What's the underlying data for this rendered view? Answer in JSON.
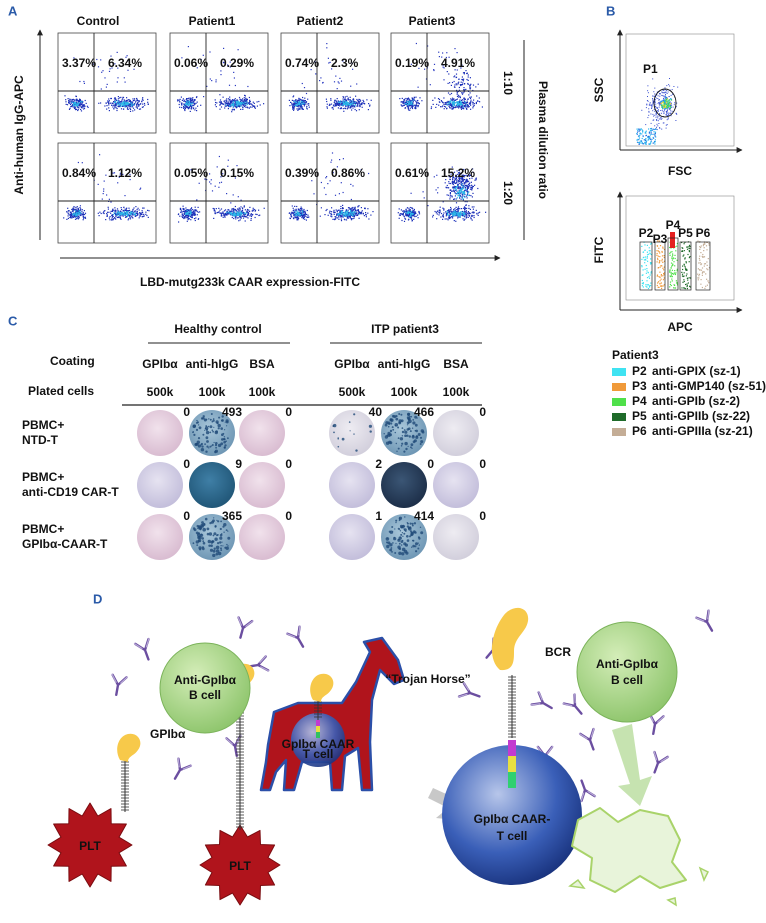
{
  "panel_a": {
    "label": "A",
    "columns": [
      "Control",
      "Patient1",
      "Patient2",
      "Patient3"
    ],
    "rows": [
      {
        "ratio": "1:10",
        "plots": [
          [
            "3.37%",
            "6.34%"
          ],
          [
            "0.06%",
            "0.29%"
          ],
          [
            "0.74%",
            "2.3%"
          ],
          [
            "0.19%",
            "4.91%"
          ]
        ]
      },
      {
        "ratio": "1:20",
        "plots": [
          [
            "0.84%",
            "1.12%"
          ],
          [
            "0.05%",
            "0.15%"
          ],
          [
            "0.39%",
            "0.86%"
          ],
          [
            "0.61%",
            "15.2%"
          ]
        ]
      }
    ],
    "y_axis_label": "Anti-human IgG-APC",
    "x_axis_label": "LBD-mutg233k CAAR expression-FITC",
    "dilution_label": "Plasma dilution ratio"
  },
  "panel_b": {
    "label": "B",
    "scatter": {
      "y_label": "SSC",
      "x_label": "FSC",
      "gate": "P1"
    },
    "gates": {
      "y_label": "FITC",
      "x_label": "APC",
      "names": [
        "P2",
        "P3",
        "P4",
        "P5",
        "P6"
      ]
    },
    "legend": {
      "title": "Patient3",
      "entries": [
        {
          "gate": "P2",
          "label": "anti-GPIX (sz-1)",
          "color": "#3fe3f2"
        },
        {
          "gate": "P3",
          "label": "anti-GMP140 (sz-51)",
          "color": "#f09a3a"
        },
        {
          "gate": "P4",
          "label": "anti-GPIb (sz-2)",
          "color": "#4fe04a"
        },
        {
          "gate": "P5",
          "label": "anti-GPIIb (sz-22)",
          "color": "#1f6b2a"
        },
        {
          "gate": "P6",
          "label": "anti-GPIIIa (sz-21)",
          "color": "#c4ad96"
        }
      ]
    }
  },
  "panel_c": {
    "label": "C",
    "groups": [
      "Healthy control",
      "ITP patient3"
    ],
    "coating_label": "Coating",
    "plated_label": "Plated cells",
    "coatings": [
      "GPIbα",
      "anti-hIgG",
      "BSA",
      "GPIbα",
      "anti-hIgG",
      "BSA"
    ],
    "plated": [
      "500k",
      "100k",
      "100k",
      "500k",
      "100k",
      "100k"
    ],
    "rows": [
      {
        "label": [
          "PBMC+",
          "NTD-T"
        ],
        "counts": [
          "0",
          "493",
          "0",
          "40",
          "466",
          "0"
        ]
      },
      {
        "label": [
          "PBMC+",
          "anti-CD19 CAR-T"
        ],
        "counts": [
          "0",
          "9",
          "0",
          "2",
          "0",
          "0"
        ]
      },
      {
        "label": [
          "PBMC+",
          "GPIbα-CAAR-T"
        ],
        "counts": [
          "0",
          "365",
          "0",
          "1",
          "414",
          "0"
        ]
      }
    ]
  },
  "panel_d": {
    "label": "D",
    "left_b_cell": [
      "Anti-GpIbα",
      "B cell"
    ],
    "gpiba": "GPIbα",
    "plt": [
      "PLT",
      "PLT"
    ],
    "horse_cell": [
      "GpIbα CAAR",
      "T cell"
    ],
    "trojan_horse": "“Trojan Horse”",
    "bcr": "BCR",
    "right_b_cell": [
      "Anti-GpIbα",
      "B cell"
    ],
    "caar_t_cell": [
      "GpIbα CAAR-",
      "T cell"
    ]
  }
}
